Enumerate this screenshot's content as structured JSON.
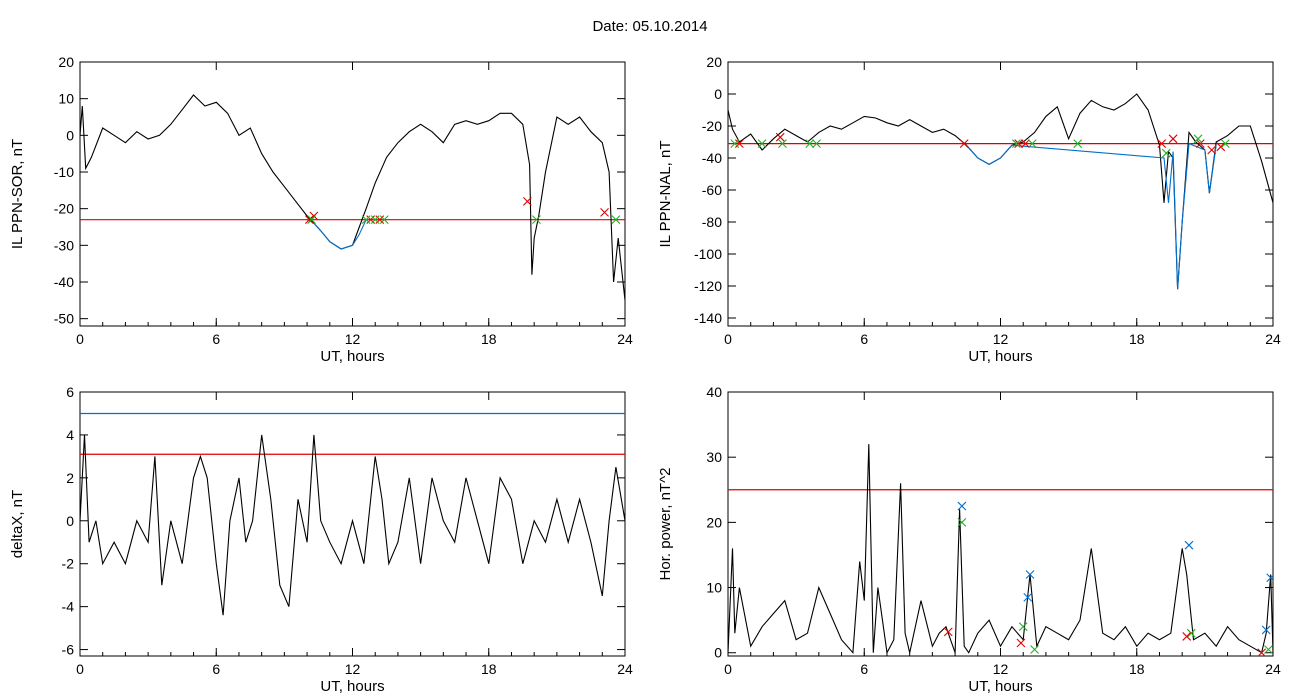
{
  "title": "Date:  05.10.2014",
  "chart_data": [
    {
      "type": "line",
      "xlabel": "UT, hours",
      "ylabel": "IL PPN-SOR, nT",
      "xlim": [
        0,
        24
      ],
      "ylim": [
        -52,
        20
      ],
      "xticks": [
        0,
        6,
        12,
        18,
        24
      ],
      "yticks": [
        20,
        10,
        0,
        -10,
        -20,
        -30,
        -40,
        -50
      ],
      "threshold_lines": [
        {
          "y": -23,
          "color": "#e00000"
        }
      ],
      "series": [
        {
          "color": "#000000",
          "x": [
            0,
            0.1,
            0.25,
            0.5,
            1,
            1.5,
            2,
            2.5,
            3,
            3.5,
            4,
            4.5,
            5,
            5.5,
            6,
            6.5,
            7,
            7.5,
            8,
            8.5,
            9,
            9.5,
            10,
            10.3,
            10.6,
            11,
            11.5,
            12,
            12.3,
            12.6,
            13,
            13.5,
            14,
            14.5,
            15,
            15.5,
            16,
            16.5,
            17,
            17.5,
            18,
            18.5,
            19,
            19.5,
            19.8,
            19.9,
            20,
            20.2,
            20.5,
            21,
            21.5,
            22,
            22.5,
            23,
            23.3,
            23.5,
            23.7,
            24
          ],
          "y": [
            0,
            8,
            -9,
            -6,
            2,
            0,
            -2,
            1,
            -1,
            0,
            3,
            7,
            11,
            8,
            9,
            6,
            0,
            2,
            -5,
            -10,
            -14,
            -18,
            -22,
            -24,
            -26,
            -29,
            -31,
            -30,
            -25,
            -20,
            -13,
            -6,
            -2,
            1,
            3,
            1,
            -2,
            3,
            4,
            3,
            4,
            6,
            6,
            3,
            -8,
            -38,
            -28,
            -22,
            -10,
            5,
            3,
            5,
            1,
            -2,
            -10,
            -40,
            -28,
            -45
          ]
        },
        {
          "color": "#0070d0",
          "x": [
            10,
            10.3,
            10.6,
            11,
            11.5,
            12,
            12.3,
            12.6
          ],
          "y": [
            -23,
            -24,
            -26,
            -29,
            -31,
            -30,
            -27,
            -23
          ]
        }
      ],
      "markers": [
        {
          "color": "#e00000",
          "x": [
            10.1,
            10.3,
            12.8,
            13.2,
            19.7,
            23.1
          ],
          "y": [
            -23,
            -22,
            -23,
            -23,
            -18,
            -21
          ]
        },
        {
          "color": "#20b020",
          "x": [
            10.2,
            12.6,
            13.0,
            13.4,
            20.1,
            23.6
          ],
          "y": [
            -23,
            -23,
            -23,
            -23,
            -23,
            -23
          ]
        }
      ]
    },
    {
      "type": "line",
      "xlabel": "UT, hours",
      "ylabel": "IL PPN-NAL, nT",
      "xlim": [
        0,
        24
      ],
      "ylim": [
        -145,
        20
      ],
      "xticks": [
        0,
        6,
        12,
        18,
        24
      ],
      "yticks": [
        20,
        0,
        -20,
        -40,
        -60,
        -80,
        -100,
        -120,
        -140
      ],
      "threshold_lines": [
        {
          "y": -31,
          "color": "#e00000"
        }
      ],
      "series": [
        {
          "color": "#000000",
          "x": [
            0,
            0.2,
            0.5,
            1,
            1.5,
            2,
            2.5,
            3,
            3.5,
            4,
            4.5,
            5,
            5.5,
            6,
            6.5,
            7,
            7.5,
            8,
            8.5,
            9,
            9.5,
            10,
            10.5,
            11,
            11.5,
            12,
            12.5,
            13,
            13.5,
            14,
            14.5,
            15,
            15.5,
            16,
            16.5,
            17,
            17.5,
            18,
            18.5,
            19,
            19.2,
            19.4,
            19.6,
            19.8,
            20,
            20.3,
            20.6,
            21,
            21.2,
            21.5,
            22,
            22.5,
            23,
            23.5,
            24
          ],
          "y": [
            -10,
            -22,
            -30,
            -25,
            -35,
            -28,
            -22,
            -26,
            -30,
            -24,
            -20,
            -22,
            -18,
            -14,
            -15,
            -18,
            -20,
            -16,
            -20,
            -24,
            -22,
            -26,
            -32,
            -40,
            -44,
            -40,
            -32,
            -30,
            -24,
            -14,
            -8,
            -28,
            -12,
            -4,
            -8,
            -10,
            -6,
            0,
            -10,
            -32,
            -68,
            -36,
            -40,
            -122,
            -80,
            -24,
            -30,
            -35,
            -62,
            -30,
            -26,
            -20,
            -20,
            -42,
            -68
          ]
        },
        {
          "color": "#0070d0",
          "x": [
            10.5,
            11,
            11.5,
            12,
            12.5,
            19.2,
            19.4,
            19.6,
            19.8,
            20,
            20.3,
            21,
            21.2,
            21.5
          ],
          "y": [
            -32,
            -40,
            -44,
            -40,
            -32,
            -40,
            -68,
            -36,
            -122,
            -80,
            -31,
            -35,
            -62,
            -32
          ]
        }
      ],
      "markers": [
        {
          "color": "#e00000",
          "x": [
            0.5,
            2.3,
            10.4,
            12.8,
            13.1,
            19.1,
            19.6,
            20.8,
            21.3,
            21.7
          ],
          "y": [
            -31,
            -27,
            -31,
            -31,
            -31,
            -31,
            -28,
            -31,
            -35,
            -33
          ]
        },
        {
          "color": "#20b020",
          "x": [
            0.3,
            1.5,
            2.4,
            3.6,
            3.9,
            12.7,
            13.4,
            15.4,
            19.3,
            20.7,
            21.9
          ],
          "y": [
            -31,
            -31,
            -31,
            -31,
            -31,
            -31,
            -31,
            -31,
            -37,
            -28,
            -31
          ]
        }
      ]
    },
    {
      "type": "line",
      "xlabel": "UT, hours",
      "ylabel": "deltaX, nT",
      "xlim": [
        0,
        24
      ],
      "ylim": [
        -6.3,
        6
      ],
      "xticks": [
        0,
        6,
        12,
        18,
        24
      ],
      "yticks": [
        6,
        4,
        2,
        0,
        -2,
        -4,
        -6
      ],
      "threshold_lines": [
        {
          "y": 5,
          "color": "#0070d0"
        },
        {
          "y": 3.1,
          "color": "#e00000"
        }
      ],
      "series": [
        {
          "color": "#000000",
          "x": [
            0,
            0.2,
            0.4,
            0.7,
            1,
            1.5,
            2,
            2.5,
            3,
            3.3,
            3.6,
            4,
            4.5,
            5,
            5.3,
            5.6,
            6,
            6.3,
            6.6,
            7,
            7.3,
            7.6,
            8,
            8.4,
            8.8,
            9.2,
            9.6,
            10,
            10.3,
            10.6,
            11,
            11.5,
            12,
            12.5,
            13,
            13.3,
            13.6,
            14,
            14.5,
            15,
            15.5,
            16,
            16.5,
            17,
            17.5,
            18,
            18.5,
            19,
            19.5,
            20,
            20.5,
            21,
            21.5,
            22,
            22.5,
            23,
            23.3,
            23.6,
            24
          ],
          "y": [
            0,
            4,
            -1,
            0,
            -2,
            -1,
            -2,
            0,
            -1,
            3,
            -3,
            0,
            -2,
            2,
            3,
            2,
            -2,
            -4.4,
            0,
            2,
            -1,
            0,
            4,
            1,
            -3,
            -4,
            1,
            -1,
            4,
            0,
            -1,
            -2,
            0,
            -2,
            3,
            1,
            -2,
            -1,
            2,
            -2,
            2,
            0,
            -1,
            2,
            0,
            -2,
            2,
            1,
            -2,
            0,
            -1,
            1,
            -1,
            1,
            -1,
            -3.5,
            0,
            2.5,
            0
          ]
        }
      ],
      "markers": []
    },
    {
      "type": "line",
      "xlabel": "UT, hours",
      "ylabel": "Hor. power, nT^2",
      "xlim": [
        0,
        24
      ],
      "ylim": [
        -0.5,
        40
      ],
      "xticks": [
        0,
        6,
        12,
        18,
        24
      ],
      "yticks": [
        40,
        30,
        20,
        10,
        0
      ],
      "threshold_lines": [
        {
          "y": 25,
          "color": "#e00000"
        }
      ],
      "series": [
        {
          "color": "#000000",
          "x": [
            0,
            0.2,
            0.3,
            0.5,
            1,
            1.5,
            2,
            2.5,
            3,
            3.5,
            4,
            4.5,
            5,
            5.5,
            5.8,
            6,
            6.2,
            6.4,
            6.6,
            7,
            7.3,
            7.6,
            7.8,
            8,
            8.5,
            9,
            9.3,
            9.6,
            10,
            10.2,
            10.4,
            10.6,
            11,
            11.5,
            12,
            12.5,
            13,
            13.3,
            13.6,
            14,
            14.5,
            15,
            15.5,
            16,
            16.5,
            17,
            17.5,
            18,
            18.5,
            19,
            19.5,
            20,
            20.2,
            20.5,
            21,
            21.5,
            22,
            22.5,
            23,
            23.5,
            23.7,
            23.9,
            24
          ],
          "y": [
            0,
            16,
            3,
            10,
            1,
            4,
            6,
            8,
            2,
            3,
            10,
            6,
            2,
            0,
            14,
            8,
            32,
            0,
            10,
            0,
            2,
            26,
            3,
            0,
            8,
            1,
            3,
            4,
            0,
            22,
            1,
            0,
            3,
            5,
            1,
            4,
            2,
            12,
            1,
            4,
            3,
            2,
            5,
            16,
            3,
            2,
            4,
            1,
            3,
            2,
            3,
            16,
            12,
            2,
            3,
            1,
            4,
            2,
            1,
            0,
            3,
            12,
            0
          ]
        }
      ],
      "markers": [
        {
          "color": "#0070d0",
          "x": [
            10.3,
            13.2,
            13.3,
            20.3,
            23.7,
            23.9
          ],
          "y": [
            22.5,
            8.5,
            12,
            16.5,
            3.5,
            11.5
          ]
        },
        {
          "color": "#20b020",
          "x": [
            10.3,
            13.0,
            13.5,
            20.4,
            23.8
          ],
          "y": [
            20,
            4,
            0.5,
            3,
            0.5
          ]
        },
        {
          "color": "#e00000",
          "x": [
            9.7,
            12.9,
            20.2,
            23.5
          ],
          "y": [
            3.2,
            1.5,
            2.5,
            0
          ]
        }
      ]
    }
  ]
}
